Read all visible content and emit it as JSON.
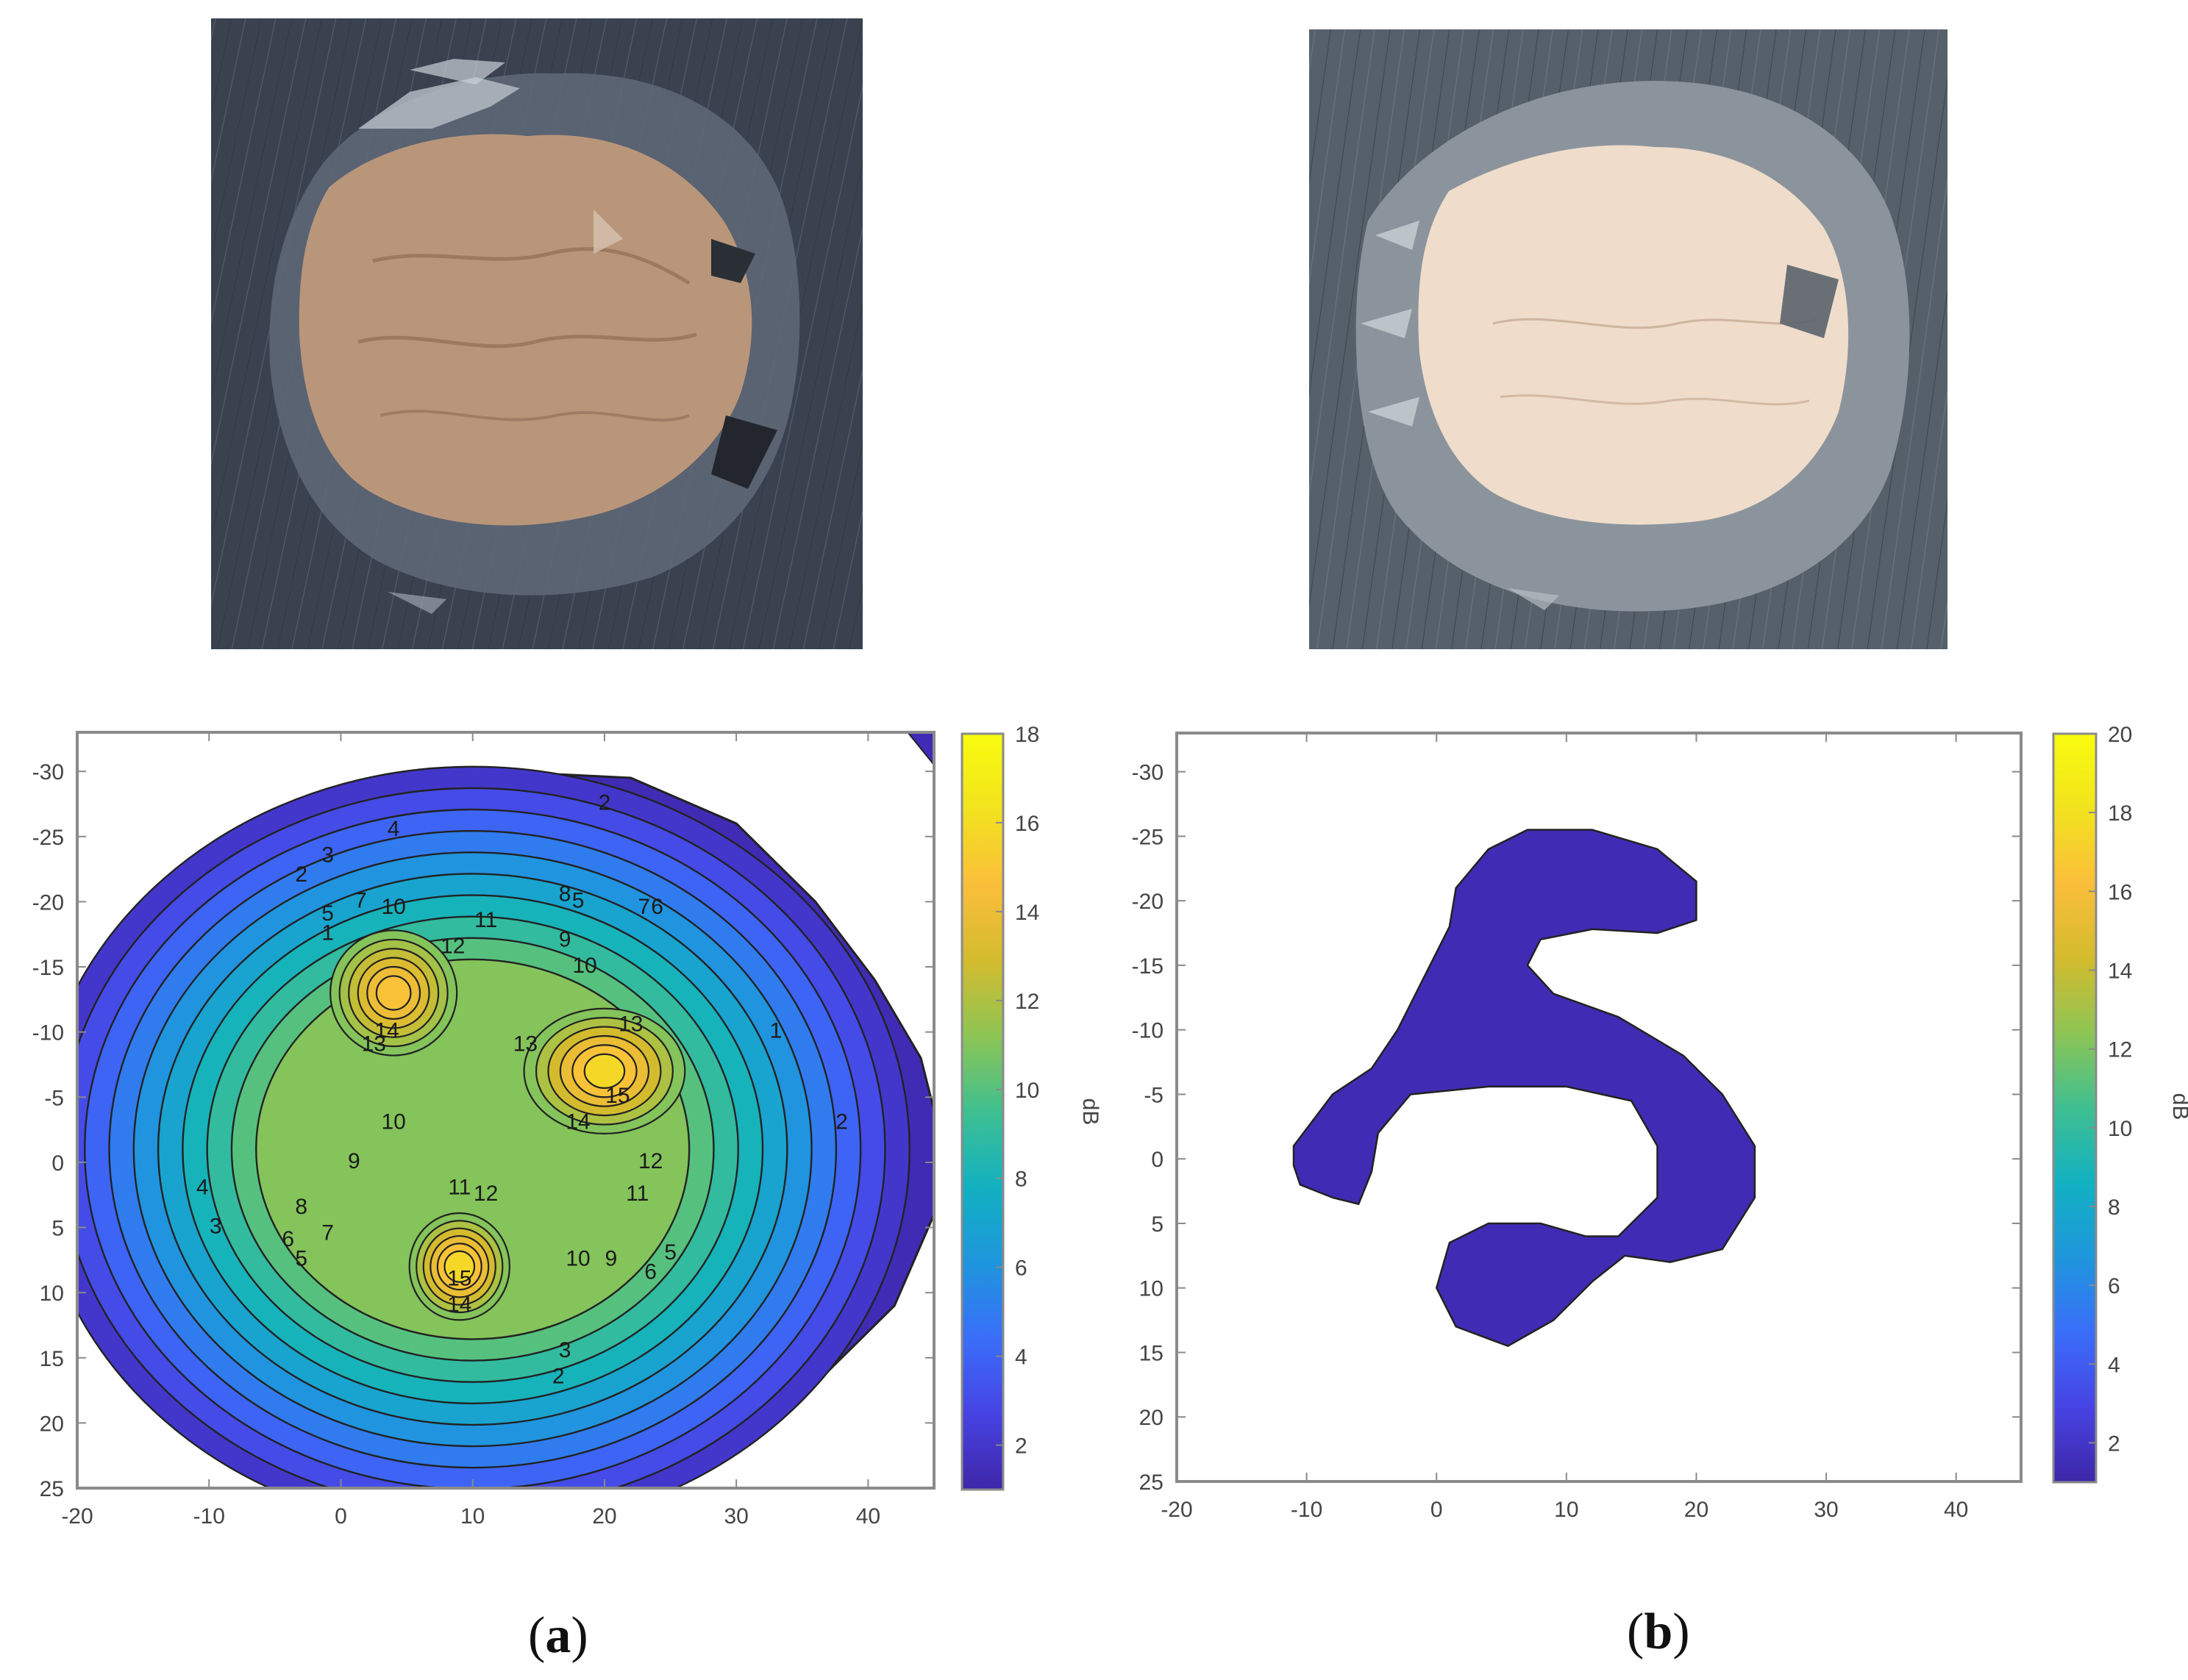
{
  "figure": {
    "panels": [
      {
        "id": "a",
        "caption_open": "(",
        "caption_letter": "a",
        "caption_close": ")"
      },
      {
        "id": "b",
        "caption_open": "(",
        "caption_letter": "b",
        "caption_close": ")"
      }
    ]
  },
  "colors": {
    "contour_scale": [
      "#3e26a8",
      "#4743e3",
      "#3a6ef9",
      "#1e96dd",
      "#12b1c1",
      "#3fbf91",
      "#8dc554",
      "#d4bb2e",
      "#fbbe3b",
      "#f2e31e",
      "#f9fb0e"
    ],
    "outline": "#222222",
    "axis_frame": "#8a8a8a",
    "photo_background_a": "#3a4250",
    "photo_background_b": "#55606a",
    "sample_tan": "#b9967a",
    "sample_pale": "#efdccb"
  },
  "chart_data": [
    {
      "panel": "a",
      "type": "contour",
      "xlim": [
        -20,
        45
      ],
      "ylim": [
        -33,
        25
      ],
      "y_reversed": true,
      "xticks": [
        -20,
        -10,
        0,
        10,
        20,
        30,
        40
      ],
      "yticks": [
        -30,
        -25,
        -20,
        -15,
        -10,
        -5,
        0,
        5,
        10,
        15,
        20,
        25
      ],
      "xtick_labels": [
        "-20",
        "-10",
        "0",
        "10",
        "20",
        "30",
        "40"
      ],
      "ytick_labels": [
        "-30",
        "-25",
        "-20",
        "-15",
        "-10",
        "-5",
        "0",
        "5",
        "10",
        "15",
        "20",
        "25"
      ],
      "colorbar": {
        "label": "dB",
        "range": [
          1,
          18
        ],
        "ticks": [
          2,
          4,
          6,
          8,
          10,
          12,
          14,
          16,
          18
        ],
        "tick_labels": [
          "2",
          "4",
          "6",
          "8",
          "10",
          "12",
          "14",
          "16",
          "18"
        ]
      },
      "level_range": [
        1,
        15
      ],
      "peaks": [
        {
          "x": 4,
          "y": -13,
          "value": 14.8,
          "rx": 4.2,
          "ry": 4.2
        },
        {
          "x": 20,
          "y": -7,
          "value": 15.8,
          "rx": 5.5,
          "ry": 4.2
        },
        {
          "x": 9,
          "y": 8,
          "value": 15.8,
          "rx": 3.2,
          "ry": 3.5
        }
      ],
      "contour_labels": [
        {
          "text": "2",
          "x": -3,
          "y": -22
        },
        {
          "text": "3",
          "x": -1,
          "y": -23.5
        },
        {
          "text": "4",
          "x": 4,
          "y": -25.5
        },
        {
          "text": "2",
          "x": 20,
          "y": -27.5
        },
        {
          "text": "5",
          "x": 18,
          "y": -20
        },
        {
          "text": "8",
          "x": 17,
          "y": -20.5
        },
        {
          "text": "9",
          "x": 17,
          "y": -17
        },
        {
          "text": "11",
          "x": 11,
          "y": -18.5
        },
        {
          "text": "12",
          "x": 8.5,
          "y": -16.5
        },
        {
          "text": "10",
          "x": 18.5,
          "y": -15
        },
        {
          "text": "5",
          "x": -1,
          "y": -19
        },
        {
          "text": "7",
          "x": 1.5,
          "y": -20
        },
        {
          "text": "10",
          "x": 4,
          "y": -19.5
        },
        {
          "text": "1",
          "x": -1,
          "y": -17.5
        },
        {
          "text": "14",
          "x": 3.5,
          "y": -10
        },
        {
          "text": "13",
          "x": 2.5,
          "y": -9
        },
        {
          "text": "13",
          "x": 14,
          "y": -9
        },
        {
          "text": "13",
          "x": 22,
          "y": -10.5
        },
        {
          "text": "15",
          "x": 21,
          "y": -5
        },
        {
          "text": "14",
          "x": 18,
          "y": -3
        },
        {
          "text": "10",
          "x": 4,
          "y": -3
        },
        {
          "text": "9",
          "x": 1,
          "y": 0
        },
        {
          "text": "11",
          "x": 9,
          "y": 2
        },
        {
          "text": "12",
          "x": 11,
          "y": 2.5
        },
        {
          "text": "12",
          "x": 23.5,
          "y": 0
        },
        {
          "text": "11",
          "x": 22.5,
          "y": 2.5
        },
        {
          "text": "8",
          "x": -3,
          "y": 3.5
        },
        {
          "text": "7",
          "x": -1,
          "y": 5.5
        },
        {
          "text": "6",
          "x": -4,
          "y": 6
        },
        {
          "text": "5",
          "x": -3,
          "y": 7.5
        },
        {
          "text": "4",
          "x": -10.5,
          "y": 2
        },
        {
          "text": "3",
          "x": -9.5,
          "y": 5
        },
        {
          "text": "15",
          "x": 9,
          "y": 9
        },
        {
          "text": "14",
          "x": 9,
          "y": 11
        },
        {
          "text": "10",
          "x": 18,
          "y": 7.5
        },
        {
          "text": "9",
          "x": 20.5,
          "y": 7.5
        },
        {
          "text": "6",
          "x": 23.5,
          "y": 8.5
        },
        {
          "text": "5",
          "x": 25,
          "y": 7
        },
        {
          "text": "3",
          "x": 17,
          "y": 14.5
        },
        {
          "text": "2",
          "x": 16.5,
          "y": 16.5
        },
        {
          "text": "1",
          "x": 33,
          "y": -10
        },
        {
          "text": "2",
          "x": 38,
          "y": -3
        },
        {
          "text": "7",
          "x": 23,
          "y": -19.5
        },
        {
          "text": "6",
          "x": 24,
          "y": -19.5
        }
      ]
    },
    {
      "panel": "b",
      "type": "contour",
      "xlim": [
        -20,
        45
      ],
      "ylim": [
        -33,
        25
      ],
      "y_reversed": true,
      "xticks": [
        -20,
        -10,
        0,
        10,
        20,
        30,
        40
      ],
      "yticks": [
        -30,
        -25,
        -20,
        -15,
        -10,
        -5,
        0,
        5,
        10,
        15,
        20,
        25
      ],
      "xtick_labels": [
        "-20",
        "-10",
        "0",
        "10",
        "20",
        "30",
        "40"
      ],
      "ytick_labels": [
        "-30",
        "-25",
        "-20",
        "-15",
        "-10",
        "-5",
        "0",
        "5",
        "10",
        "15",
        "20",
        "25"
      ],
      "colorbar": {
        "label": "dB",
        "range": [
          1,
          20
        ],
        "ticks": [
          2,
          4,
          6,
          8,
          10,
          12,
          14,
          16,
          18,
          20
        ],
        "tick_labels": [
          "2",
          "4",
          "6",
          "8",
          "10",
          "12",
          "14",
          "16",
          "18",
          "20"
        ]
      },
      "defect_region": {
        "level": 1,
        "boundary": [
          [
            -11,
            -1
          ],
          [
            -8,
            -5
          ],
          [
            -5,
            -7
          ],
          [
            -3,
            -10
          ],
          [
            -1,
            -14
          ],
          [
            1,
            -18
          ],
          [
            1.5,
            -21
          ],
          [
            4,
            -24
          ],
          [
            7,
            -25.5
          ],
          [
            12,
            -25.5
          ],
          [
            17,
            -24
          ],
          [
            20,
            -21.5
          ],
          [
            20,
            -18.5
          ],
          [
            17,
            -17.5
          ],
          [
            12,
            -17.8
          ],
          [
            8,
            -17
          ],
          [
            7,
            -15
          ],
          [
            9,
            -12.8
          ],
          [
            14,
            -11
          ],
          [
            19,
            -8
          ],
          [
            22,
            -5
          ],
          [
            24.5,
            -1
          ],
          [
            24.5,
            3
          ],
          [
            22,
            7
          ],
          [
            18,
            8
          ],
          [
            14.5,
            7.5
          ],
          [
            12,
            9.5
          ],
          [
            9,
            12.5
          ],
          [
            5.5,
            14.5
          ],
          [
            1.5,
            13
          ],
          [
            0,
            10
          ],
          [
            1,
            6.5
          ],
          [
            4,
            5
          ],
          [
            8,
            5
          ],
          [
            11.5,
            6
          ],
          [
            14,
            6
          ],
          [
            17,
            3
          ],
          [
            17,
            -1
          ],
          [
            15,
            -4.5
          ],
          [
            10,
            -5.6
          ],
          [
            4,
            -5.6
          ],
          [
            -2,
            -5
          ],
          [
            -4.5,
            -2
          ],
          [
            -5,
            1
          ],
          [
            -6,
            3.5
          ],
          [
            -8,
            3
          ],
          [
            -10.5,
            2
          ],
          [
            -11,
            0.5
          ]
        ]
      }
    }
  ]
}
